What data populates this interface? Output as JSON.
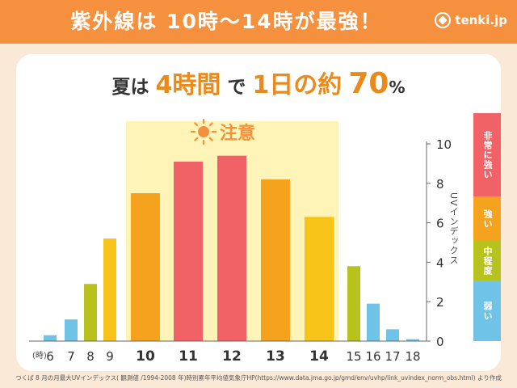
{
  "header": {
    "title": "紫外線は 10時〜14時が最強！",
    "brand": "tenki.jp"
  },
  "headline": {
    "part1": "夏は",
    "part2": "4時間",
    "part3": "で",
    "part4": "1日の約",
    "part5": "70",
    "part6": "%"
  },
  "caution": {
    "label": "注意",
    "icon": "sun-icon"
  },
  "legend": [
    {
      "label": "非常に強い",
      "color": "#f06266"
    },
    {
      "label": "強い",
      "color": "#f5a21e"
    },
    {
      "label": "中程度",
      "color": "#b8c21c"
    },
    {
      "label": "弱い",
      "color": "#6ec3e6"
    }
  ],
  "footer": "つくば 8 月の月最大UVインデックス( 観測値 /1994-2008 年)時別累年平均値気象庁HP(https://www.data.jma.go.jp/gmd/env/uvhp/link_uvindex_norm_obs.html) より作成",
  "chart_data": {
    "type": "bar",
    "x_unit_label": "(時)",
    "ylabel": "UVインデックス",
    "ylim": [
      0,
      10
    ],
    "yticks": [
      0,
      2,
      4,
      6,
      8,
      10
    ],
    "categories": [
      "6",
      "7",
      "8",
      "9",
      "10",
      "11",
      "12",
      "13",
      "14",
      "15",
      "16",
      "17",
      "18"
    ],
    "values": [
      0.3,
      1.1,
      2.9,
      5.2,
      7.5,
      9.1,
      9.4,
      8.2,
      6.3,
      3.8,
      1.9,
      0.6,
      0.1
    ],
    "colors": [
      "#6ec3e6",
      "#6ec3e6",
      "#b8c21c",
      "#f8c41a",
      "#f5a21e",
      "#f06266",
      "#f06266",
      "#f5a21e",
      "#f8c41a",
      "#b8c21c",
      "#6ec3e6",
      "#6ec3e6",
      "#6ec3e6"
    ],
    "emphasized": [
      "10",
      "11",
      "12",
      "13",
      "14"
    ],
    "highlight_range": [
      "10",
      "14"
    ],
    "highlight_color": "#fff4b8",
    "grid": false
  }
}
